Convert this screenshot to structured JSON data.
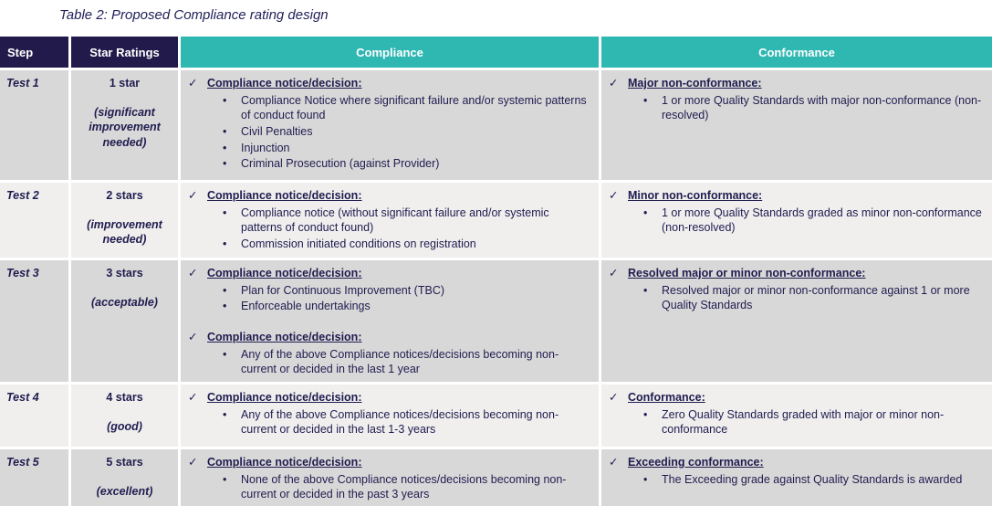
{
  "caption": "Table 2: Proposed Compliance rating design",
  "icons": {
    "check": "✓",
    "bullet": "•"
  },
  "colors": {
    "header_navy": "#221a4b",
    "header_teal": "#2fb7b2",
    "row_gray": "#d9d8d8",
    "row_light": "#f0efee",
    "text_navy": "#1f1c4f",
    "header_text": "#ffffff"
  },
  "header": {
    "step": "Step",
    "star_ratings": "Star Ratings",
    "compliance": "Compliance",
    "conformance": "Conformance"
  },
  "rows": [
    {
      "step": "Test 1",
      "stars": "1 star",
      "note": "(significant improvement needed)",
      "compliance": [
        {
          "heading": "Compliance notice/decision:",
          "bullets": [
            "Compliance Notice where significant failure and/or systemic patterns of conduct found",
            "Civil Penalties",
            "Injunction",
            "Criminal Prosecution (against Provider)"
          ]
        }
      ],
      "conformance": [
        {
          "heading": "Major non-conformance:",
          "bullets": [
            "1 or more Quality Standards with major non-conformance (non-resolved)"
          ]
        }
      ]
    },
    {
      "step": "Test 2",
      "stars": "2 stars",
      "note": "(improvement needed)",
      "compliance": [
        {
          "heading": "Compliance notice/decision:",
          "bullets": [
            "Compliance notice (without significant failure and/or systemic patterns of conduct found)",
            "Commission initiated conditions on registration"
          ]
        }
      ],
      "conformance": [
        {
          "heading": "Minor non-conformance:",
          "bullets": [
            "1 or more Quality Standards graded as minor non-conformance (non-resolved)"
          ]
        }
      ]
    },
    {
      "step": "Test 3",
      "stars": "3 stars",
      "note": "(acceptable)",
      "compliance": [
        {
          "heading": "Compliance notice/decision:",
          "bullets": [
            "Plan for Continuous Improvement (TBC)",
            "Enforceable undertakings"
          ]
        },
        {
          "heading": "Compliance notice/decision:",
          "bullets": [
            "Any of the above Compliance notices/decisions becoming non-current or decided in the last 1 year"
          ]
        }
      ],
      "conformance": [
        {
          "heading": "Resolved major or minor non-conformance:",
          "bullets": [
            "Resolved major or minor non-conformance against 1 or more Quality Standards"
          ]
        }
      ]
    },
    {
      "step": "Test 4",
      "stars": "4 stars",
      "note": "(good)",
      "compliance": [
        {
          "heading": "Compliance notice/decision:",
          "bullets": [
            "Any of the above Compliance notices/decisions becoming non-current or decided in the last 1-3 years"
          ]
        }
      ],
      "conformance": [
        {
          "heading": "Conformance:",
          "bullets": [
            "Zero Quality Standards graded with major or minor non-conformance"
          ]
        }
      ]
    },
    {
      "step": "Test 5",
      "stars": "5 stars",
      "note": "(excellent)",
      "compliance": [
        {
          "heading": "Compliance notice/decision:",
          "bullets": [
            "None of the above Compliance notices/decisions becoming non-current or decided in the past 3 years"
          ]
        }
      ],
      "conformance": [
        {
          "heading": "Exceeding conformance:",
          "bullets": [
            "The Exceeding grade against Quality Standards is awarded"
          ]
        }
      ]
    }
  ]
}
